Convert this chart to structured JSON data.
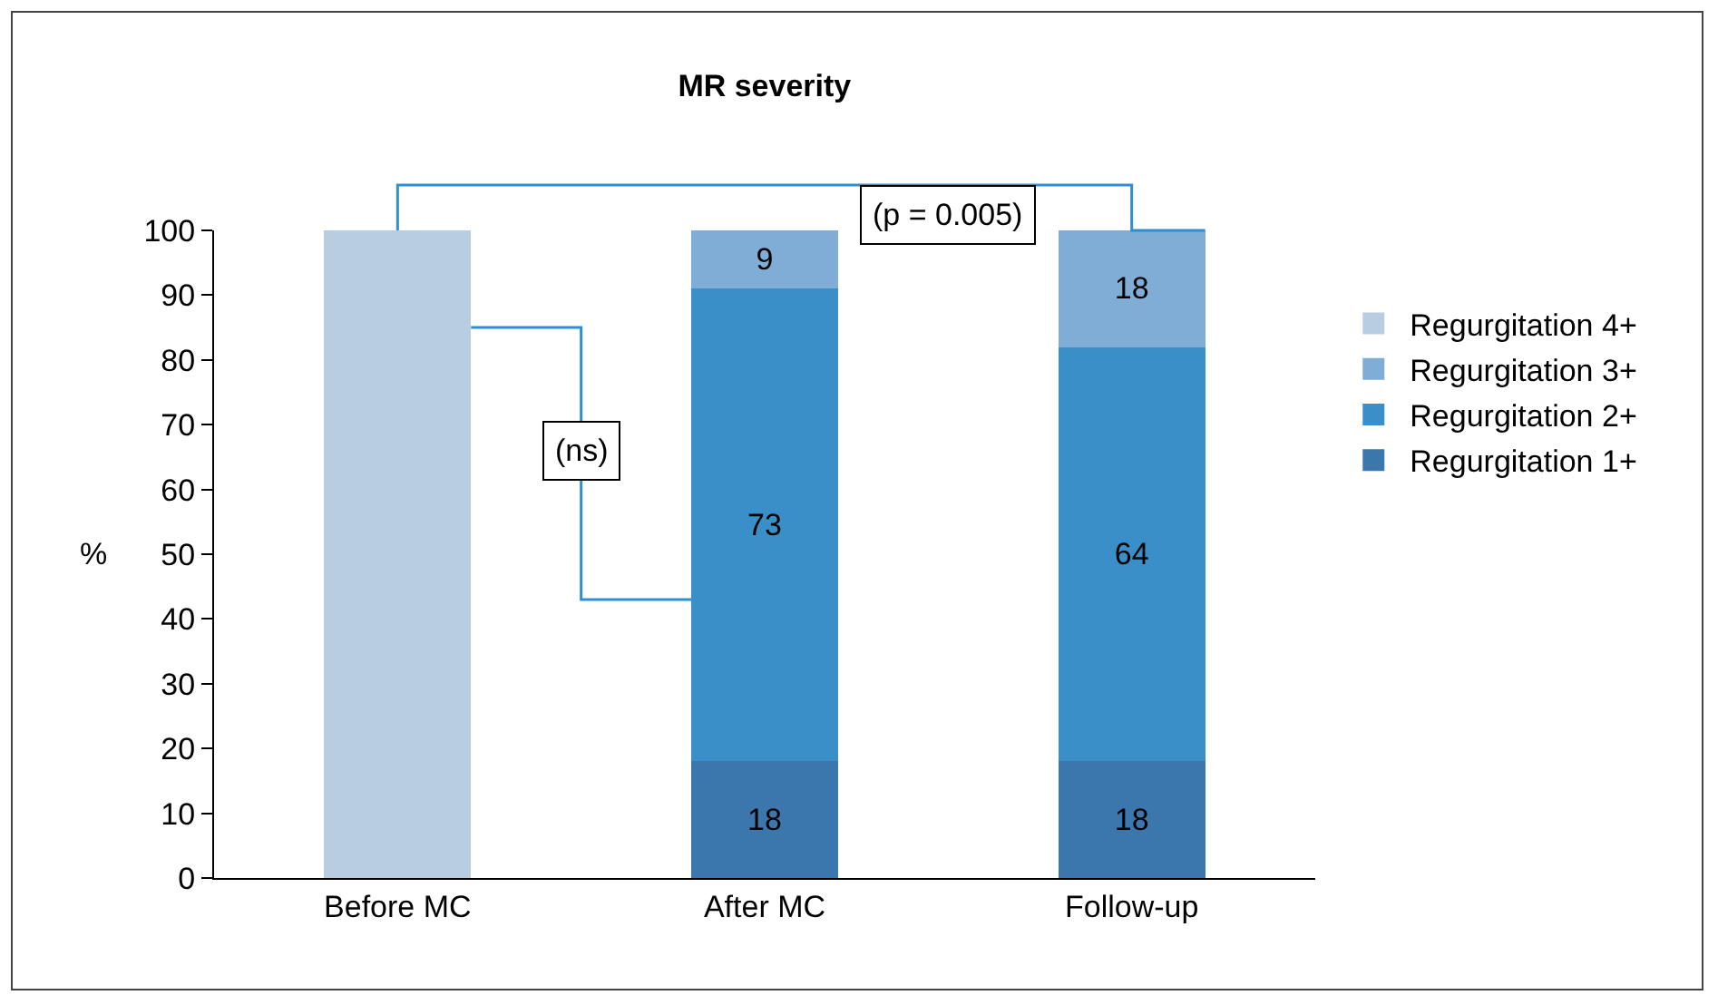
{
  "chart_data": {
    "type": "bar",
    "title": "MR severity",
    "ylabel": "%",
    "categories": [
      "Before MC",
      "After MC",
      "Follow-up"
    ],
    "stacked": true,
    "series": [
      {
        "name": "Regurgitation 1+",
        "color": "#3b76ad",
        "values": [
          0,
          18,
          18
        ],
        "value_labels": [
          null,
          "18",
          "18"
        ]
      },
      {
        "name": "Regurgitation 2+",
        "color": "#3a8fc9",
        "values": [
          0,
          73,
          64
        ],
        "value_labels": [
          null,
          "73",
          "64"
        ]
      },
      {
        "name": "Regurgitation 3+",
        "color": "#7fadd5",
        "values": [
          0,
          9,
          18
        ],
        "value_labels": [
          null,
          "9",
          "18"
        ]
      },
      {
        "name": "Regurgitation 4+",
        "color": "#b9cde0",
        "values": [
          100,
          0,
          0
        ],
        "value_labels": [
          null,
          null,
          null
        ]
      }
    ],
    "ylim": [
      0,
      100
    ],
    "yticks": [
      0,
      10,
      20,
      30,
      40,
      50,
      60,
      70,
      80,
      90,
      100
    ],
    "grid": false,
    "legend": "right",
    "annotations": [
      "(ns)",
      "(p = 0.005)"
    ]
  }
}
